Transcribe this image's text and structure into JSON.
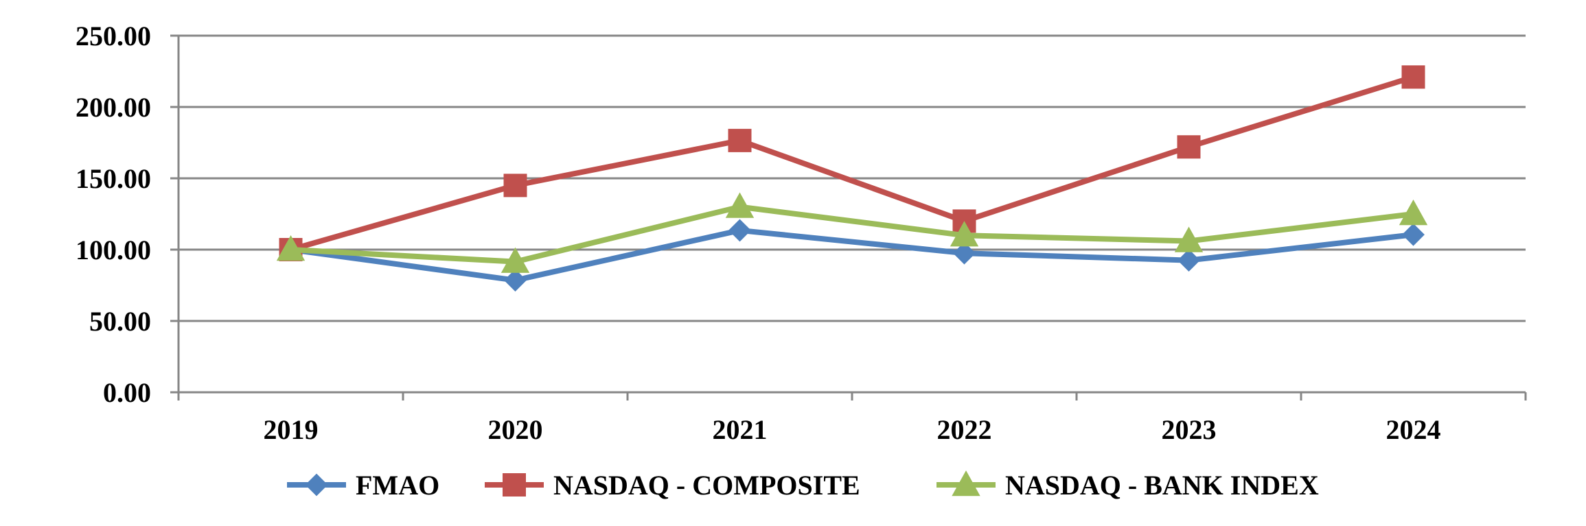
{
  "chart_data": {
    "type": "line",
    "categories": [
      "2019",
      "2020",
      "2021",
      "2022",
      "2023",
      "2024"
    ],
    "y_tick_labels": [
      "0.00",
      "50.00",
      "100.00",
      "150.00",
      "200.00",
      "250.00"
    ],
    "ylim": [
      0,
      250
    ],
    "grid": true,
    "legend_position": "bottom",
    "series": [
      {
        "name": "FMAO",
        "color": "#4F81BD",
        "marker": "diamond",
        "values": [
          100.0,
          78.5,
          113.5,
          97.5,
          92.5,
          110.5
        ]
      },
      {
        "name": "NASDAQ - COMPOSITE",
        "color": "#C0504D",
        "marker": "square",
        "values": [
          100.0,
          145.0,
          176.5,
          120.0,
          172.0,
          221.0
        ]
      },
      {
        "name": "NASDAQ - BANK INDEX",
        "color": "#9BBB59",
        "marker": "triangle",
        "values": [
          100.0,
          91.5,
          130.0,
          110.0,
          106.0,
          125.0
        ]
      }
    ]
  }
}
